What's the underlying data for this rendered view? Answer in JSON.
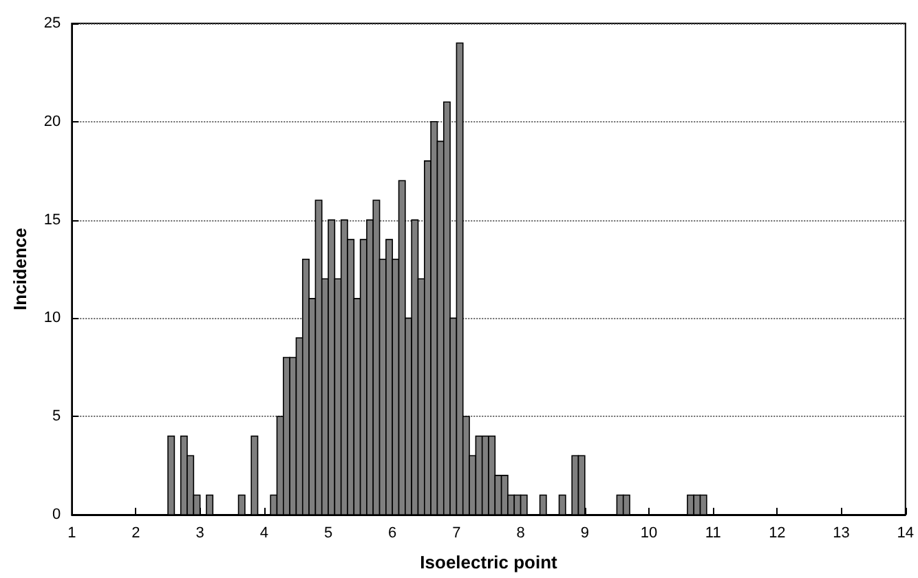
{
  "chart_data": {
    "type": "histogram",
    "xlabel": "Isoelectric point",
    "ylabel": "Incidence",
    "bins": [
      2.5,
      2.6,
      2.7,
      2.8,
      2.9,
      3.0,
      3.1,
      3.2,
      3.3,
      3.4,
      3.5,
      3.6,
      3.7,
      3.8,
      3.9,
      4.0,
      4.1,
      4.2,
      4.3,
      4.4,
      4.5,
      4.6,
      4.7,
      4.8,
      4.9,
      5.0,
      5.1,
      5.2,
      5.3,
      5.4,
      5.5,
      5.6,
      5.7,
      5.8,
      5.9,
      6.0,
      6.1,
      6.2,
      6.3,
      6.4,
      6.5,
      6.6,
      6.7,
      6.8,
      6.9,
      7.0,
      7.1,
      7.2,
      7.3,
      7.4,
      7.5,
      7.6,
      7.7,
      7.8,
      7.9,
      8.0,
      8.1,
      8.2,
      8.3,
      8.4,
      8.5,
      8.6,
      8.7,
      8.8,
      8.9,
      9.0,
      9.1,
      9.2,
      9.3,
      9.4,
      9.5,
      9.6,
      9.7,
      9.8,
      9.9,
      10.0,
      10.1,
      10.2,
      10.3,
      10.4,
      10.5,
      10.6,
      10.7,
      10.8,
      10.9
    ],
    "values": [
      4,
      0,
      4,
      3,
      1,
      0,
      1,
      0,
      0,
      0,
      0,
      1,
      0,
      4,
      0,
      0,
      1,
      5,
      8,
      8,
      9,
      13,
      11,
      16,
      12,
      15,
      12,
      15,
      14,
      11,
      14,
      15,
      16,
      13,
      14,
      13,
      17,
      10,
      15,
      12,
      18,
      20,
      19,
      21,
      10,
      24,
      5,
      3,
      4,
      4,
      4,
      2,
      2,
      1,
      1,
      1,
      0,
      0,
      1,
      0,
      0,
      1,
      0,
      3,
      3,
      0,
      0,
      0,
      0,
      0,
      1,
      1,
      0,
      0,
      0,
      0,
      0,
      0,
      0,
      0,
      0,
      1,
      1,
      1
    ],
    "color": "#7f7f7f",
    "xlim": [
      1,
      14
    ],
    "xticks": [
      1,
      2,
      3,
      4,
      5,
      6,
      7,
      8,
      9,
      10,
      11,
      12,
      13,
      14
    ],
    "ylim": [
      0,
      25
    ],
    "yticks": [
      0,
      5,
      10,
      15,
      20,
      25
    ],
    "grid": "y"
  }
}
